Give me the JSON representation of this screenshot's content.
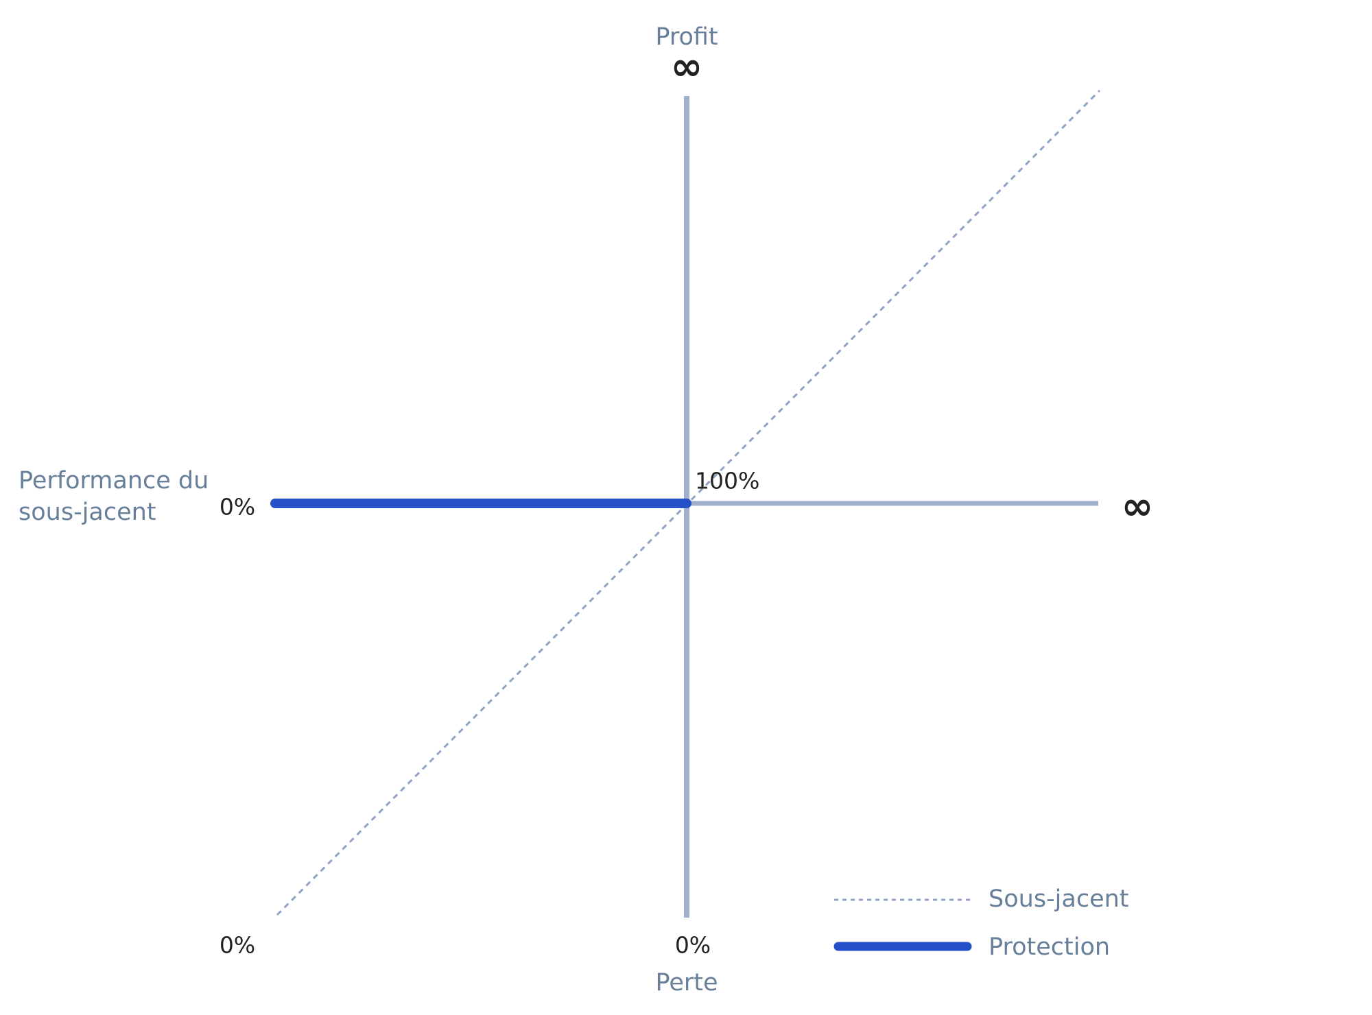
{
  "axes": {
    "y_label": "Profit",
    "y_top": "∞",
    "y_bottom": "Perte",
    "x_label_lines": [
      "Performance du",
      "sous-jacent"
    ],
    "x_right": "∞"
  },
  "labels": {
    "left_level": "0%",
    "strike": "100%",
    "bottom_left": "0%",
    "bottom_center": "0%"
  },
  "legend": [
    {
      "name": "Sous-jacent"
    },
    {
      "name": "Protection"
    }
  ]
}
